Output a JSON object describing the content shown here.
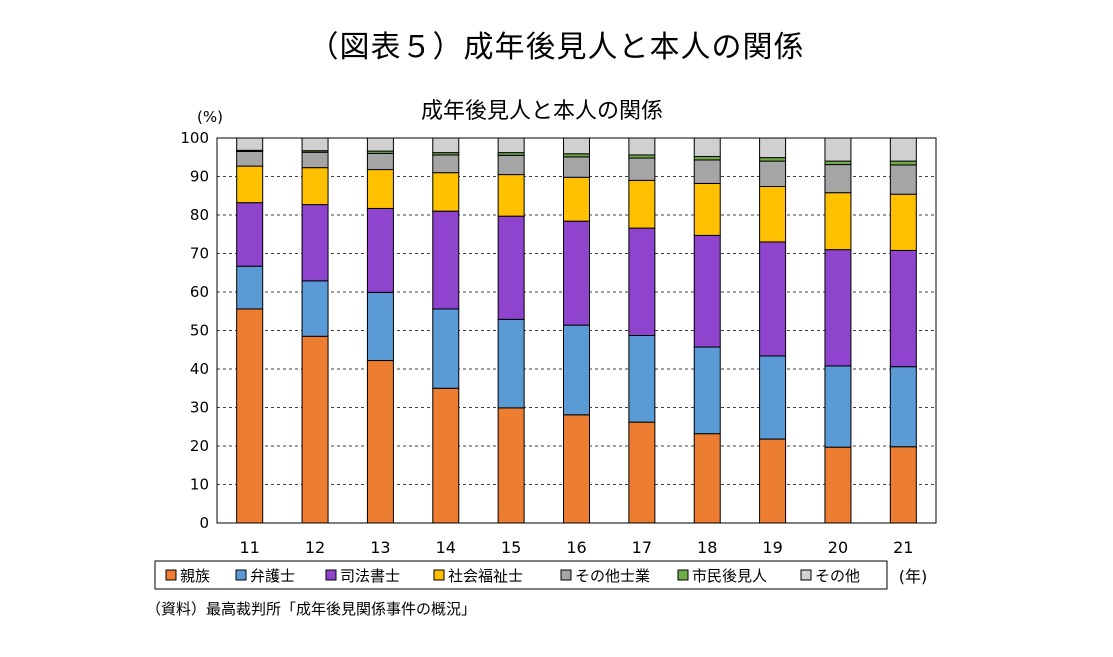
{
  "figure_title": "（図表５）成年後見人と本人の関係",
  "source_note": "（資料）最高裁判所「成年後見関係事件の概況」",
  "chart_data": {
    "type": "bar",
    "stacked": true,
    "title": "成年後見人と本人の関係",
    "ylabel": "(%)",
    "xlabel": "(年)",
    "ylim": [
      0,
      100
    ],
    "yticks": [
      0,
      10,
      20,
      30,
      40,
      50,
      60,
      70,
      80,
      90,
      100
    ],
    "grid": true,
    "legend_position": "bottom",
    "categories": [
      "11",
      "12",
      "13",
      "14",
      "15",
      "16",
      "17",
      "18",
      "19",
      "20",
      "21"
    ],
    "series": [
      {
        "name": "親族",
        "color": "#ED7D31",
        "values": [
          55.6,
          48.5,
          42.2,
          35.0,
          29.9,
          28.1,
          26.2,
          23.2,
          21.8,
          19.7,
          19.8
        ]
      },
      {
        "name": "弁護士",
        "color": "#5B9BD5",
        "values": [
          11.1,
          14.4,
          17.7,
          20.6,
          23.0,
          23.3,
          22.5,
          22.5,
          21.6,
          21.1,
          20.8
        ]
      },
      {
        "name": "司法書士",
        "color": "#8E44CC",
        "values": [
          16.5,
          19.8,
          21.8,
          25.4,
          26.8,
          27.0,
          27.9,
          29.0,
          29.6,
          30.2,
          30.2
        ]
      },
      {
        "name": "社会福祉士",
        "color": "#FFC000",
        "values": [
          9.5,
          9.6,
          10.1,
          10.0,
          10.8,
          11.4,
          12.4,
          13.5,
          14.4,
          14.8,
          14.6
        ]
      },
      {
        "name": "その他士業",
        "color": "#A5A5A5",
        "values": [
          3.8,
          4.0,
          4.2,
          4.6,
          5.0,
          5.3,
          5.8,
          6.1,
          6.6,
          7.3,
          7.6
        ]
      },
      {
        "name": "市民後見人",
        "color": "#70AD47",
        "values": [
          0.3,
          0.4,
          0.6,
          0.6,
          0.7,
          0.8,
          0.8,
          0.9,
          0.9,
          0.9,
          1.0
        ]
      },
      {
        "name": "その他",
        "color": "#D0D0D0",
        "values": [
          3.2,
          3.3,
          3.4,
          3.8,
          3.8,
          4.1,
          4.4,
          4.8,
          5.1,
          6.0,
          6.0
        ]
      }
    ]
  }
}
